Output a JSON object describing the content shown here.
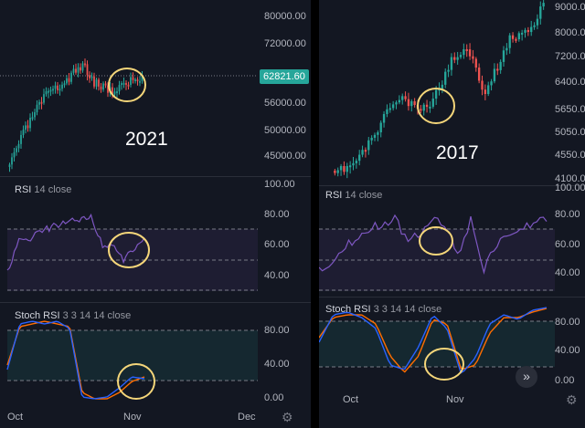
{
  "left_chart": {
    "year_label": "2021",
    "price_badge": "62821.60",
    "price_ticks": [
      "80000.00",
      "72000.00",
      "56000.00",
      "50000.00",
      "45000.00"
    ],
    "rsi_title": "RSI",
    "rsi_params": "14 close",
    "rsi_ticks": [
      "100.00",
      "80.00",
      "60.00",
      "40.00"
    ],
    "stoch_title": "Stoch RSI",
    "stoch_params": "3 3 14 14 close",
    "stoch_ticks": [
      "80.00",
      "40.00",
      "0.00"
    ],
    "time_labels": [
      "Oct",
      "Nov",
      "Dec"
    ]
  },
  "right_chart": {
    "year_label": "2017",
    "price_ticks": [
      "9000.00",
      "8000.00",
      "7200.00",
      "6400.00",
      "5650.00",
      "5050.00",
      "4550.00",
      "4100.00"
    ],
    "rsi_title": "RSI",
    "rsi_params": "14 close",
    "rsi_ticks": [
      "100.00",
      "80.00",
      "60.00",
      "40.00"
    ],
    "stoch_title": "Stoch RSI",
    "stoch_params": "3 3 14 14 close",
    "stoch_ticks": [
      "80.00",
      "40.00",
      "0.00"
    ],
    "time_labels": [
      "Oct",
      "Nov"
    ]
  },
  "colors": {
    "up": "#26a69a",
    "down": "#ef5350",
    "rsi_line": "#7e57c2",
    "stoch_k": "#2962ff",
    "stoch_d": "#ff6d00",
    "highlight_circle": "#f5d67a",
    "price_badge": "#26a69a"
  },
  "icons": {
    "settings": "gear-icon",
    "scroll_forward": "double-chevron-right-icon"
  }
}
